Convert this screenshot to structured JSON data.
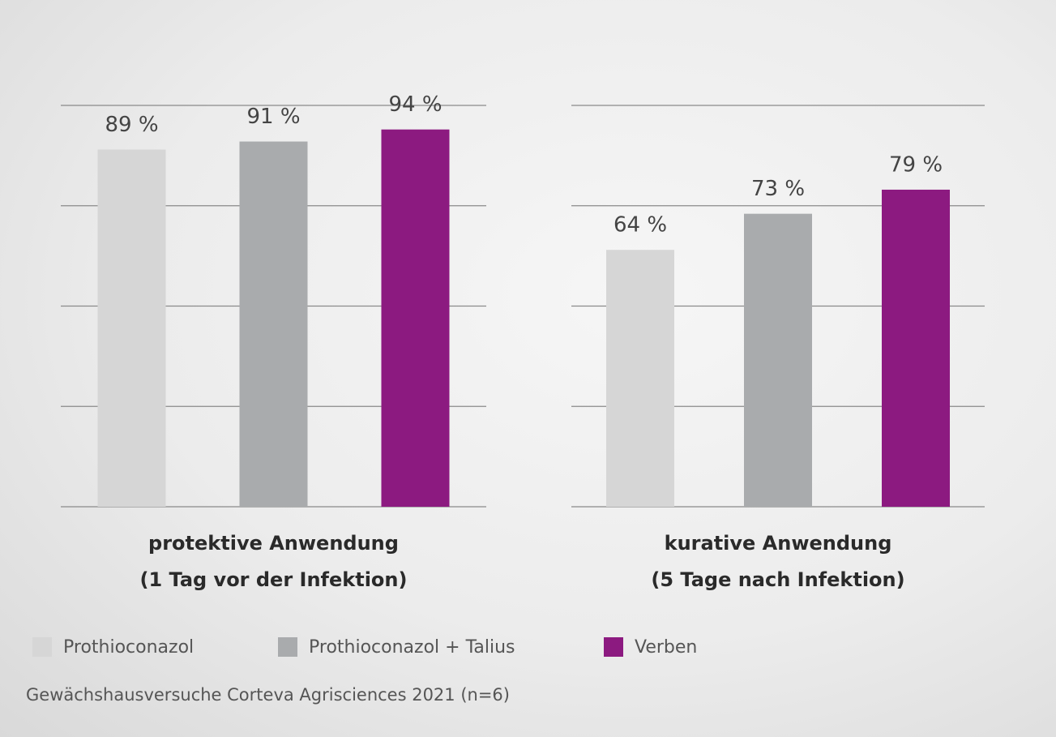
{
  "chart_data": {
    "type": "bar",
    "categories": [
      "protektive Anwendung\n(1 Tag vor der Infektion)",
      "kurative Anwendung\n(5 Tage nach Infektion)"
    ],
    "series": [
      {
        "name": "Prothioconazol",
        "color": "#d6d6d6",
        "values": [
          89,
          64
        ],
        "value_labels": [
          "89 %",
          "64 %"
        ]
      },
      {
        "name": "Prothioconazol + Talius",
        "color": "#a9abad",
        "values": [
          91,
          73
        ],
        "value_labels": [
          "91 %",
          "73 %"
        ]
      },
      {
        "name": "Verben",
        "color": "#8c1a80",
        "values": [
          94,
          79
        ],
        "value_labels": [
          "94 %",
          "79 %"
        ]
      }
    ],
    "ylim": [
      0,
      100
    ],
    "yticks": [
      0,
      25,
      50,
      75,
      100
    ],
    "grid": true,
    "source": "Gewächshausversuche Corteva Agrisciences 2021 (n=6)"
  }
}
